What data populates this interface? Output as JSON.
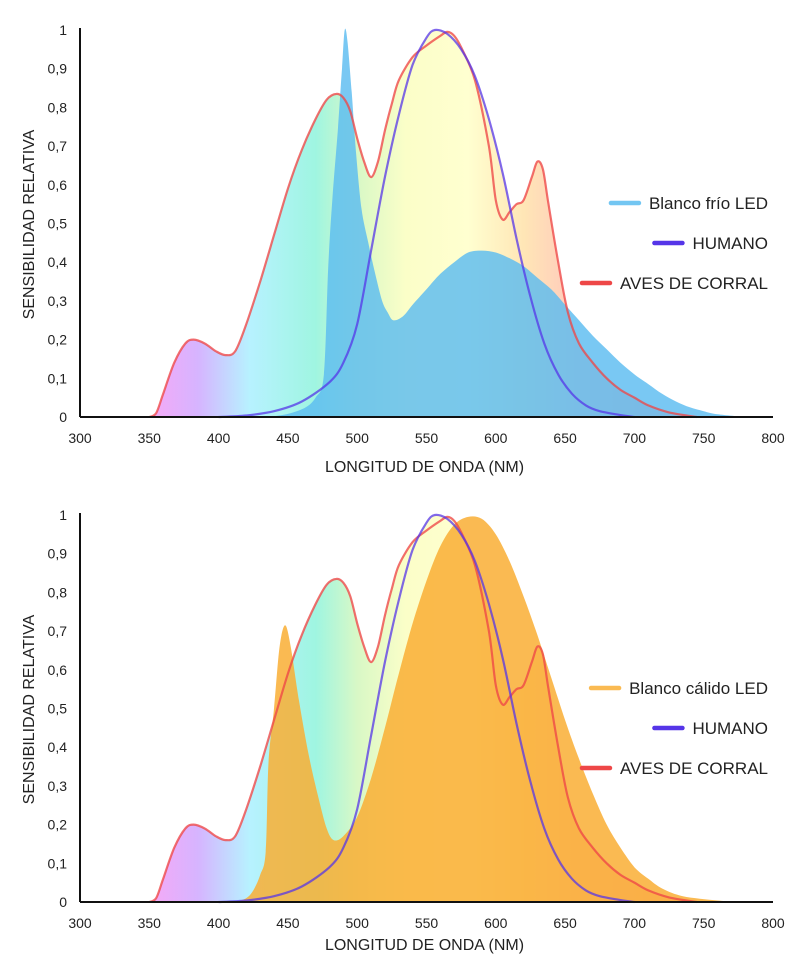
{
  "chart_data": [
    {
      "type": "area",
      "xlabel": "LONGITUD DE ONDA (NM)",
      "ylabel": "SENSIBILIDAD RELATIVA",
      "xlim": [
        300,
        800
      ],
      "ylim": [
        0,
        1
      ],
      "x_ticks": [
        "300",
        "350",
        "400",
        "450",
        "500",
        "550",
        "600",
        "650",
        "700",
        "750",
        "800"
      ],
      "y_ticks": [
        "0",
        "0,1",
        "0,2",
        "0,3",
        "0,4",
        "0,5",
        "0,6",
        "0,7",
        "0,8",
        "0,9",
        "1"
      ],
      "legend_position": "right",
      "series": [
        {
          "name": "Blanco frío LED",
          "color": "#5bbcf0",
          "points": [
            [
              405,
              0
            ],
            [
              440,
              0.002
            ],
            [
              460,
              0.02
            ],
            [
              470,
              0.05
            ],
            [
              476,
              0.11
            ],
            [
              479,
              0.38
            ],
            [
              482,
              0.56
            ],
            [
              486,
              0.74
            ],
            [
              489,
              0.9
            ],
            [
              491,
              1.0
            ],
            [
              493,
              0.97
            ],
            [
              496,
              0.84
            ],
            [
              499,
              0.69
            ],
            [
              503,
              0.54
            ],
            [
              508,
              0.45
            ],
            [
              513,
              0.37
            ],
            [
              518,
              0.3
            ],
            [
              522,
              0.27
            ],
            [
              526,
              0.25
            ],
            [
              533,
              0.26
            ],
            [
              540,
              0.29
            ],
            [
              550,
              0.33
            ],
            [
              560,
              0.37
            ],
            [
              570,
              0.4
            ],
            [
              580,
              0.425
            ],
            [
              590,
              0.43
            ],
            [
              600,
              0.425
            ],
            [
              610,
              0.41
            ],
            [
              620,
              0.39
            ],
            [
              630,
              0.36
            ],
            [
              640,
              0.33
            ],
            [
              650,
              0.29
            ],
            [
              660,
              0.25
            ],
            [
              670,
              0.21
            ],
            [
              680,
              0.175
            ],
            [
              690,
              0.14
            ],
            [
              700,
              0.11
            ],
            [
              710,
              0.085
            ],
            [
              720,
              0.06
            ],
            [
              730,
              0.04
            ],
            [
              740,
              0.025
            ],
            [
              750,
              0.015
            ],
            [
              760,
              0.007
            ],
            [
              780,
              0
            ]
          ]
        },
        {
          "name": "HUMANO",
          "color": "#5535e8",
          "points": [
            [
              400,
              0
            ],
            [
              420,
              0.004
            ],
            [
              440,
              0.015
            ],
            [
              460,
              0.04
            ],
            [
              480,
              0.09
            ],
            [
              490,
              0.14
            ],
            [
              500,
              0.24
            ],
            [
              510,
              0.43
            ],
            [
              520,
              0.62
            ],
            [
              530,
              0.78
            ],
            [
              540,
              0.91
            ],
            [
              550,
              0.98
            ],
            [
              556,
              1.0
            ],
            [
              565,
              0.99
            ],
            [
              575,
              0.95
            ],
            [
              585,
              0.88
            ],
            [
              595,
              0.77
            ],
            [
              605,
              0.63
            ],
            [
              615,
              0.46
            ],
            [
              625,
              0.31
            ],
            [
              635,
              0.19
            ],
            [
              645,
              0.11
            ],
            [
              655,
              0.06
            ],
            [
              665,
              0.03
            ],
            [
              675,
              0.015
            ],
            [
              690,
              0.005
            ],
            [
              700,
              0
            ]
          ]
        },
        {
          "name": "AVES DE CORRAL",
          "color": "#ee4747",
          "points": [
            [
              350,
              0
            ],
            [
              355,
              0.01
            ],
            [
              360,
              0.06
            ],
            [
              368,
              0.14
            ],
            [
              376,
              0.19
            ],
            [
              382,
              0.2
            ],
            [
              390,
              0.19
            ],
            [
              398,
              0.17
            ],
            [
              405,
              0.16
            ],
            [
              412,
              0.17
            ],
            [
              420,
              0.24
            ],
            [
              430,
              0.35
            ],
            [
              440,
              0.47
            ],
            [
              450,
              0.59
            ],
            [
              460,
              0.69
            ],
            [
              470,
              0.77
            ],
            [
              478,
              0.82
            ],
            [
              485,
              0.835
            ],
            [
              490,
              0.825
            ],
            [
              495,
              0.79
            ],
            [
              500,
              0.72
            ],
            [
              505,
              0.66
            ],
            [
              510,
              0.62
            ],
            [
              515,
              0.66
            ],
            [
              520,
              0.74
            ],
            [
              525,
              0.81
            ],
            [
              530,
              0.87
            ],
            [
              540,
              0.93
            ],
            [
              550,
              0.96
            ],
            [
              560,
              0.985
            ],
            [
              565,
              0.995
            ],
            [
              570,
              0.985
            ],
            [
              575,
              0.955
            ],
            [
              585,
              0.87
            ],
            [
              595,
              0.7
            ],
            [
              600,
              0.56
            ],
            [
              605,
              0.51
            ],
            [
              610,
              0.53
            ],
            [
              615,
              0.55
            ],
            [
              620,
              0.56
            ],
            [
              626,
              0.62
            ],
            [
              630,
              0.66
            ],
            [
              634,
              0.64
            ],
            [
              638,
              0.55
            ],
            [
              645,
              0.4
            ],
            [
              652,
              0.27
            ],
            [
              660,
              0.19
            ],
            [
              670,
              0.14
            ],
            [
              680,
              0.1
            ],
            [
              690,
              0.07
            ],
            [
              700,
              0.05
            ],
            [
              710,
              0.03
            ],
            [
              725,
              0.012
            ],
            [
              745,
              0
            ]
          ]
        }
      ]
    },
    {
      "type": "area",
      "xlabel": "LONGITUD DE ONDA (NM)",
      "ylabel": "SENSIBILIDAD RELATIVA",
      "xlim": [
        300,
        800
      ],
      "ylim": [
        0,
        1
      ],
      "x_ticks": [
        "300",
        "350",
        "400",
        "450",
        "500",
        "550",
        "600",
        "650",
        "700",
        "750",
        "800"
      ],
      "y_ticks": [
        "0",
        "0,1",
        "0,2",
        "0,3",
        "0,4",
        "0,5",
        "0,6",
        "0,7",
        "0,8",
        "0,9",
        "1"
      ],
      "legend_position": "right",
      "series": [
        {
          "name": "Blanco cálido LED",
          "color": "#f9ae34",
          "points": [
            [
              412,
              0
            ],
            [
              420,
              0.01
            ],
            [
              425,
              0.03
            ],
            [
              430,
              0.07
            ],
            [
              434,
              0.13
            ],
            [
              436,
              0.36
            ],
            [
              440,
              0.5
            ],
            [
              444,
              0.66
            ],
            [
              448,
              0.715
            ],
            [
              452,
              0.66
            ],
            [
              458,
              0.52
            ],
            [
              465,
              0.38
            ],
            [
              472,
              0.27
            ],
            [
              478,
              0.19
            ],
            [
              483,
              0.16
            ],
            [
              490,
              0.17
            ],
            [
              500,
              0.22
            ],
            [
              510,
              0.32
            ],
            [
              520,
              0.45
            ],
            [
              530,
              0.59
            ],
            [
              540,
              0.72
            ],
            [
              550,
              0.83
            ],
            [
              560,
              0.92
            ],
            [
              570,
              0.975
            ],
            [
              580,
              0.995
            ],
            [
              590,
              0.99
            ],
            [
              600,
              0.95
            ],
            [
              610,
              0.88
            ],
            [
              620,
              0.79
            ],
            [
              630,
              0.69
            ],
            [
              640,
              0.58
            ],
            [
              650,
              0.47
            ],
            [
              660,
              0.37
            ],
            [
              670,
              0.28
            ],
            [
              680,
              0.2
            ],
            [
              690,
              0.14
            ],
            [
              700,
              0.09
            ],
            [
              710,
              0.06
            ],
            [
              720,
              0.035
            ],
            [
              735,
              0.015
            ],
            [
              760,
              0.004
            ],
            [
              780,
              0
            ]
          ]
        },
        {
          "name": "HUMANO",
          "color": "#5535e8",
          "points": [
            [
              400,
              0
            ],
            [
              420,
              0.004
            ],
            [
              440,
              0.015
            ],
            [
              460,
              0.04
            ],
            [
              480,
              0.09
            ],
            [
              490,
              0.14
            ],
            [
              500,
              0.24
            ],
            [
              510,
              0.43
            ],
            [
              520,
              0.62
            ],
            [
              530,
              0.78
            ],
            [
              540,
              0.91
            ],
            [
              550,
              0.98
            ],
            [
              556,
              1.0
            ],
            [
              565,
              0.99
            ],
            [
              575,
              0.95
            ],
            [
              585,
              0.88
            ],
            [
              595,
              0.77
            ],
            [
              605,
              0.63
            ],
            [
              615,
              0.46
            ],
            [
              625,
              0.31
            ],
            [
              635,
              0.19
            ],
            [
              645,
              0.11
            ],
            [
              655,
              0.06
            ],
            [
              665,
              0.03
            ],
            [
              675,
              0.015
            ],
            [
              690,
              0.005
            ],
            [
              700,
              0
            ]
          ]
        },
        {
          "name": "AVES DE CORRAL",
          "color": "#ee4747",
          "points": [
            [
              350,
              0
            ],
            [
              355,
              0.01
            ],
            [
              360,
              0.06
            ],
            [
              368,
              0.14
            ],
            [
              376,
              0.19
            ],
            [
              382,
              0.2
            ],
            [
              390,
              0.19
            ],
            [
              398,
              0.17
            ],
            [
              405,
              0.16
            ],
            [
              412,
              0.17
            ],
            [
              420,
              0.24
            ],
            [
              430,
              0.35
            ],
            [
              440,
              0.47
            ],
            [
              450,
              0.59
            ],
            [
              460,
              0.69
            ],
            [
              470,
              0.77
            ],
            [
              478,
              0.82
            ],
            [
              485,
              0.835
            ],
            [
              490,
              0.825
            ],
            [
              495,
              0.79
            ],
            [
              500,
              0.72
            ],
            [
              505,
              0.66
            ],
            [
              510,
              0.62
            ],
            [
              515,
              0.66
            ],
            [
              520,
              0.74
            ],
            [
              525,
              0.81
            ],
            [
              530,
              0.87
            ],
            [
              540,
              0.93
            ],
            [
              550,
              0.96
            ],
            [
              560,
              0.985
            ],
            [
              565,
              0.995
            ],
            [
              570,
              0.985
            ],
            [
              575,
              0.955
            ],
            [
              585,
              0.87
            ],
            [
              595,
              0.7
            ],
            [
              600,
              0.56
            ],
            [
              605,
              0.51
            ],
            [
              610,
              0.53
            ],
            [
              615,
              0.55
            ],
            [
              620,
              0.56
            ],
            [
              626,
              0.62
            ],
            [
              630,
              0.66
            ],
            [
              634,
              0.64
            ],
            [
              638,
              0.55
            ],
            [
              645,
              0.4
            ],
            [
              652,
              0.27
            ],
            [
              660,
              0.19
            ],
            [
              670,
              0.14
            ],
            [
              680,
              0.1
            ],
            [
              690,
              0.07
            ],
            [
              700,
              0.05
            ],
            [
              710,
              0.03
            ],
            [
              725,
              0.012
            ],
            [
              745,
              0
            ]
          ]
        }
      ]
    }
  ]
}
